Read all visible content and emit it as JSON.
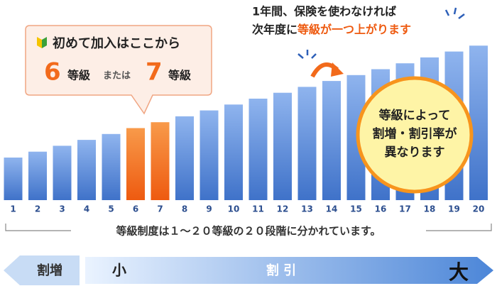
{
  "bars": {
    "labels": [
      "1",
      "2",
      "3",
      "4",
      "5",
      "6",
      "7",
      "8",
      "9",
      "10",
      "11",
      "12",
      "13",
      "14",
      "15",
      "16",
      "17",
      "18",
      "19",
      "20"
    ],
    "highlighted": [
      "6",
      "7"
    ],
    "bar_color": "#5b8ddb",
    "highlight_color": "#f26a1b"
  },
  "callout": {
    "title": "初めて加入はここから",
    "grade_a": "6",
    "unit_a": "等級",
    "or": "または",
    "grade_b": "7",
    "unit_b": "等級"
  },
  "note": {
    "line1": "1年間、保険を使わなければ",
    "line2_prefix": "次年度に",
    "line2_emphasis": "等級が一つ上がります"
  },
  "circle": {
    "lines": [
      "等級によって",
      "割増・割引率が",
      "異なります"
    ]
  },
  "bracket_text": "等級制度は１～２０等級の２０段階に分かれています。",
  "scale": {
    "surcharge": "割増",
    "small": "小",
    "discount": "割 引",
    "large": "大"
  }
}
